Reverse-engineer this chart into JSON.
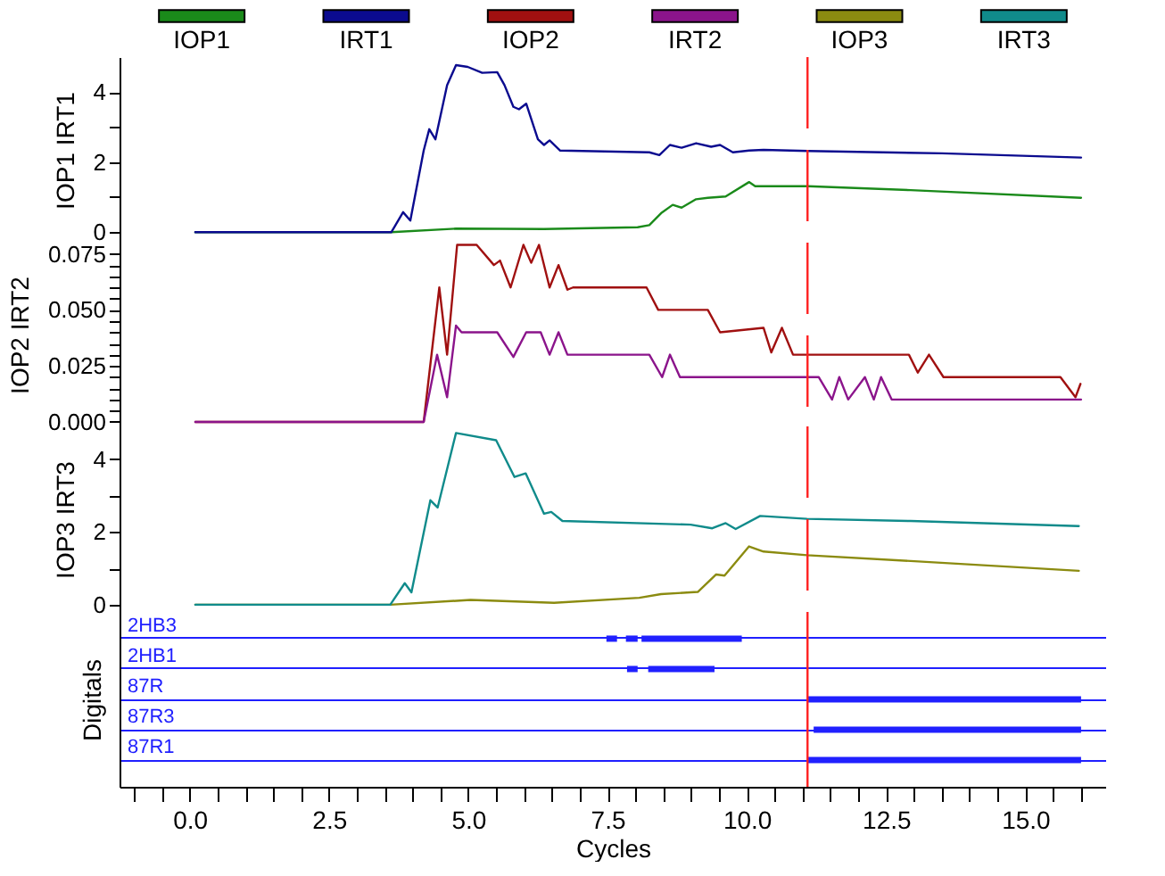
{
  "chart_data": [
    {
      "type": "line",
      "ylabel": "IOP1 IRT1",
      "legend": "top",
      "tick_labels": "y",
      "xlim": [
        -1.26,
        16.45
      ],
      "ylim": [
        -0.3,
        5
      ],
      "yticks": [
        0,
        {
          "value": 1,
          "label": null
        },
        2,
        {
          "value": 3,
          "label": null
        },
        4
      ],
      "ref_lines": [
        {
          "axis": "x",
          "value": 11.09,
          "color": "#ff2020",
          "line_style": "dashed"
        }
      ],
      "series": [
        {
          "name": "IOP1",
          "color": "#1a8a1a",
          "x": [
            0.1,
            3.62,
            4.78,
            6.36,
            8.04,
            8.25,
            8.46,
            8.67,
            8.83,
            9.09,
            9.3,
            9.62,
            10.04,
            10.15,
            11.1,
            12.94,
            16
          ],
          "values": [
            0,
            0,
            0.1,
            0.09,
            0.14,
            0.2,
            0.54,
            0.78,
            0.7,
            0.94,
            0.98,
            1.02,
            1.43,
            1.31,
            1.31,
            1.2,
            0.98
          ]
        },
        {
          "name": "IRT1",
          "color": "#0b0b8f",
          "x": [
            0.1,
            3.62,
            3.83,
            3.96,
            4.2,
            4.3,
            4.41,
            4.62,
            4.78,
            4.99,
            5.25,
            5.52,
            5.65,
            5.81,
            5.91,
            6.04,
            6.25,
            6.36,
            6.46,
            6.65,
            8.25,
            8.43,
            8.62,
            8.83,
            9.09,
            9.36,
            9.52,
            9.75,
            10.04,
            10.3,
            11.1,
            13.5,
            16
          ],
          "values": [
            0,
            0,
            0.57,
            0.33,
            2.33,
            2.94,
            2.65,
            4.2,
            4.77,
            4.72,
            4.55,
            4.57,
            4.2,
            3.58,
            3.51,
            3.67,
            2.65,
            2.49,
            2.62,
            2.33,
            2.28,
            2.2,
            2.49,
            2.41,
            2.54,
            2.44,
            2.49,
            2.28,
            2.33,
            2.35,
            2.32,
            2.25,
            2.13
          ]
        }
      ]
    },
    {
      "type": "line",
      "ylabel": "IOP2 IRT2",
      "legend": "top",
      "tick_labels": "y",
      "xlim": [
        -1.26,
        16.45
      ],
      "ylim": [
        -0.002,
        0.08
      ],
      "yticks": [
        {
          "value": 0,
          "label": "0.000"
        },
        {
          "value": 0.005,
          "label": null
        },
        {
          "value": 0.01,
          "label": null
        },
        {
          "value": 0.015,
          "label": null
        },
        {
          "value": 0.02,
          "label": null
        },
        {
          "value": 0.025,
          "label": "0.025"
        },
        {
          "value": 0.03,
          "label": null
        },
        {
          "value": 0.035,
          "label": null
        },
        {
          "value": 0.04,
          "label": null
        },
        {
          "value": 0.045,
          "label": null
        },
        {
          "value": 0.05,
          "label": "0.050"
        },
        {
          "value": 0.055,
          "label": null
        },
        {
          "value": 0.06,
          "label": null
        },
        {
          "value": 0.065,
          "label": null
        },
        {
          "value": 0.07,
          "label": null
        },
        {
          "value": 0.075,
          "label": "0.075"
        }
      ],
      "ref_lines": [
        {
          "axis": "x",
          "value": 11.09,
          "color": "#ff2020",
          "line_style": "dashed"
        }
      ],
      "series": [
        {
          "name": "IOP2",
          "color": "#a01010",
          "x": [
            0.1,
            4.2,
            4.48,
            4.62,
            4.8,
            5.15,
            5.46,
            5.57,
            5.76,
            5.99,
            6.13,
            6.27,
            6.46,
            6.62,
            6.78,
            6.88,
            8.2,
            8.41,
            9.3,
            9.52,
            10.3,
            10.44,
            10.63,
            10.83,
            12.91,
            13.07,
            13.27,
            13.53,
            15.63,
            15.9,
            15.99
          ],
          "values": [
            0,
            0,
            0.06,
            0.03,
            0.079,
            0.079,
            0.07,
            0.072,
            0.06,
            0.079,
            0.071,
            0.079,
            0.06,
            0.07,
            0.059,
            0.06,
            0.06,
            0.05,
            0.05,
            0.04,
            0.042,
            0.031,
            0.042,
            0.03,
            0.03,
            0.022,
            0.03,
            0.02,
            0.02,
            0.011,
            0.017
          ]
        },
        {
          "name": "IRT2",
          "color": "#8b148b",
          "x": [
            0.1,
            4.2,
            4.44,
            4.62,
            4.78,
            4.88,
            5.52,
            5.81,
            6.04,
            6.3,
            6.46,
            6.62,
            6.78,
            6.94,
            8.25,
            8.48,
            8.62,
            8.8,
            11.29,
            11.53,
            11.66,
            11.82,
            12.12,
            12.28,
            12.41,
            12.6,
            16
          ],
          "values": [
            0,
            0,
            0.03,
            0.011,
            0.043,
            0.04,
            0.04,
            0.029,
            0.04,
            0.04,
            0.03,
            0.04,
            0.03,
            0.03,
            0.03,
            0.02,
            0.03,
            0.02,
            0.02,
            0.01,
            0.02,
            0.01,
            0.02,
            0.01,
            0.02,
            0.01,
            0.01
          ]
        }
      ]
    },
    {
      "type": "line",
      "ylabel": "IOP3 IRT3",
      "legend": "top",
      "tick_labels": "y",
      "xlim": [
        -1.26,
        16.45
      ],
      "ylim": [
        -0.2,
        4.9
      ],
      "yticks": [
        0,
        {
          "value": 1,
          "label": null
        },
        2,
        {
          "value": 3,
          "label": null
        },
        4
      ],
      "ref_lines": [
        {
          "axis": "x",
          "value": 11.09,
          "color": "#ff2020",
          "line_style": "dashed"
        }
      ],
      "series": [
        {
          "name": "IOP3",
          "color": "#8b8b10",
          "x": [
            0.1,
            3.6,
            5.04,
            6.54,
            8.07,
            8.46,
            9.12,
            9.45,
            9.6,
            10.04,
            10.3,
            11.08,
            12.94,
            15.96
          ],
          "values": [
            0,
            0,
            0.13,
            0.05,
            0.19,
            0.29,
            0.35,
            0.83,
            0.8,
            1.6,
            1.46,
            1.36,
            1.2,
            0.93
          ]
        },
        {
          "name": "IRT3",
          "color": "#108b8b",
          "x": [
            0.1,
            3.6,
            3.86,
            3.98,
            4.32,
            4.45,
            4.78,
            5.5,
            5.83,
            6.03,
            6.36,
            6.49,
            6.69,
            8.99,
            9.38,
            9.62,
            9.8,
            10.24,
            11.08,
            12.94,
            15.96
          ],
          "values": [
            0,
            0,
            0.59,
            0.34,
            2.87,
            2.67,
            4.72,
            4.52,
            3.51,
            3.61,
            2.5,
            2.55,
            2.3,
            2.2,
            2.1,
            2.24,
            2.08,
            2.44,
            2.36,
            2.3,
            2.16
          ]
        }
      ]
    },
    {
      "type": "bar",
      "orientation": "horizontal",
      "ylabel": "Digitals",
      "xlabel": "Cycles",
      "grid": "y",
      "categories": [
        "2HB3",
        "2HB1",
        "87R",
        "87R3",
        "87R1"
      ],
      "xlim": [
        -1.26,
        16.45
      ],
      "xticks": [
        {
          "value": -1,
          "label": null
        },
        {
          "value": -0.5,
          "label": null
        },
        {
          "value": 0,
          "label": "0.0"
        },
        {
          "value": 0.5,
          "label": null
        },
        {
          "value": 1,
          "label": null
        },
        {
          "value": 1.5,
          "label": null
        },
        {
          "value": 2,
          "label": null
        },
        {
          "value": 2.5,
          "label": "2.5"
        },
        {
          "value": 3,
          "label": null
        },
        {
          "value": 3.5,
          "label": null
        },
        {
          "value": 4,
          "label": null
        },
        {
          "value": 4.5,
          "label": null
        },
        {
          "value": 5,
          "label": "5.0"
        },
        {
          "value": 5.5,
          "label": null
        },
        {
          "value": 6,
          "label": null
        },
        {
          "value": 6.5,
          "label": null
        },
        {
          "value": 7,
          "label": null
        },
        {
          "value": 7.5,
          "label": "7.5"
        },
        {
          "value": 8,
          "label": null
        },
        {
          "value": 8.5,
          "label": null
        },
        {
          "value": 9,
          "label": null
        },
        {
          "value": 9.5,
          "label": null
        },
        {
          "value": 10,
          "label": "10.0"
        },
        {
          "value": 10.5,
          "label": null
        },
        {
          "value": 11,
          "label": null
        },
        {
          "value": 11.5,
          "label": null
        },
        {
          "value": 12,
          "label": null
        },
        {
          "value": 12.5,
          "label": "12.5"
        },
        {
          "value": 13,
          "label": null
        },
        {
          "value": 13.5,
          "label": null
        },
        {
          "value": 14,
          "label": null
        },
        {
          "value": 14.5,
          "label": null
        },
        {
          "value": 15,
          "label": "15.0"
        },
        {
          "value": 15.5,
          "label": null
        },
        {
          "value": 16,
          "label": null
        }
      ],
      "ref_lines": [
        {
          "axis": "x",
          "value": 11.09,
          "color": "#ff2020"
        }
      ],
      "series": [
        {
          "color": "#2020ff",
          "base": [
            7.48,
            7.85,
            11.09,
            11.2,
            11.09
          ],
          "values": [
            0.19,
            0.19,
            4.91,
            4.8,
            4.91
          ]
        },
        {
          "color": "#2020ff",
          "base": [
            7.83,
            8.23,
            null,
            null,
            null
          ],
          "values": [
            0.21,
            1.19,
            null,
            null,
            null
          ]
        },
        {
          "color": "#2020ff",
          "base": [
            8.11,
            null,
            null,
            null,
            null
          ],
          "values": [
            1.8,
            null,
            null,
            null,
            null
          ]
        }
      ]
    }
  ]
}
